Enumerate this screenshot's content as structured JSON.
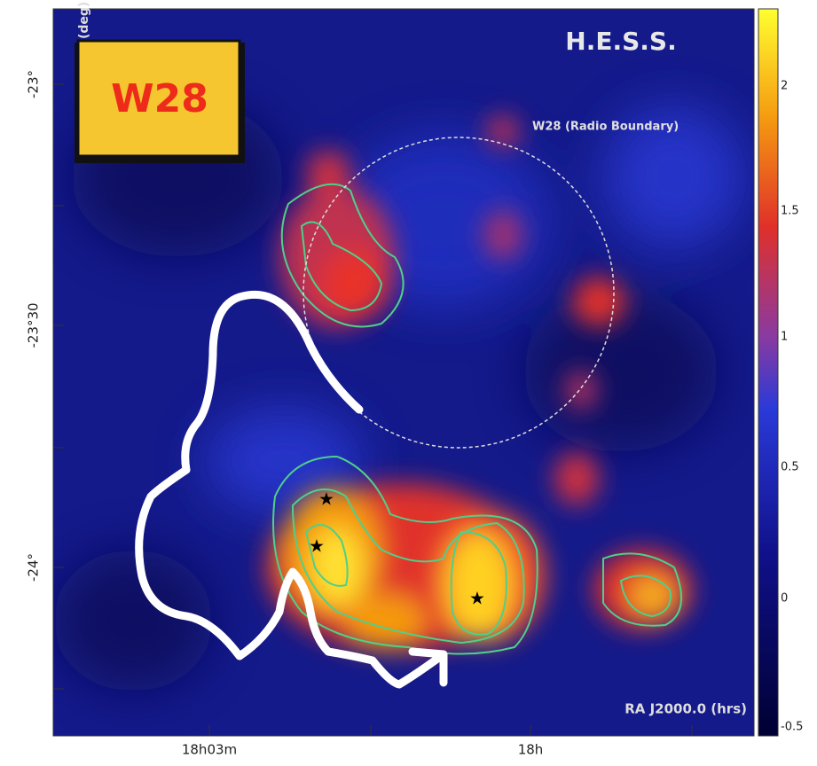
{
  "map": {
    "title": "H.E.S.S.",
    "badge": "W28",
    "annotation": "W28 (Radio Boundary)",
    "x_axis_label": "RA J2000.0 (hrs)",
    "y_axis_label": "Dec (deg)",
    "y_tick_labels": [
      "-23°",
      "-23°30",
      "-24°"
    ],
    "x_tick_labels": [
      "18h03m",
      "18h"
    ],
    "colorbar_labels": [
      "2",
      "1.5",
      "1",
      "0.5",
      "0",
      "-0.5"
    ]
  }
}
